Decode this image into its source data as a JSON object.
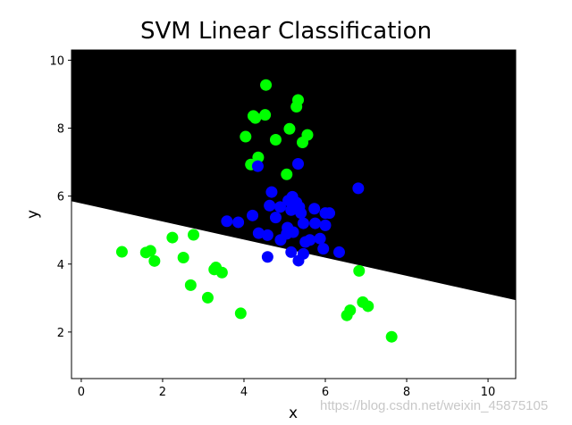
{
  "chart_data": {
    "type": "scatter",
    "title": "SVM Linear Classification",
    "xlabel": "x",
    "ylabel": "y",
    "xlim": [
      -0.24,
      10.68
    ],
    "ylim": [
      0.63,
      10.3
    ],
    "xticks": [
      0,
      2,
      4,
      6,
      8,
      10
    ],
    "yticks": [
      2,
      4,
      6,
      8,
      10
    ],
    "grid": false,
    "legend": null,
    "decision_regions": {
      "upper_color": "#000000",
      "lower_color": "#ffffff",
      "boundary": {
        "x": [
          -0.24,
          10.68
        ],
        "y": [
          5.85,
          2.94
        ]
      }
    },
    "series": [
      {
        "name": "class_green",
        "color": "#00ff00",
        "points": [
          [
            4.54,
            9.27
          ],
          [
            5.33,
            8.83
          ],
          [
            5.29,
            8.63
          ],
          [
            4.23,
            8.36
          ],
          [
            4.28,
            8.3
          ],
          [
            4.52,
            8.39
          ],
          [
            5.12,
            7.98
          ],
          [
            4.04,
            7.75
          ],
          [
            4.78,
            7.66
          ],
          [
            5.56,
            7.8
          ],
          [
            5.44,
            7.58
          ],
          [
            4.35,
            7.14
          ],
          [
            4.17,
            6.93
          ],
          [
            5.05,
            6.64
          ],
          [
            1.0,
            4.36
          ],
          [
            1.59,
            4.34
          ],
          [
            1.7,
            4.39
          ],
          [
            1.8,
            4.09
          ],
          [
            2.24,
            4.78
          ],
          [
            2.76,
            4.86
          ],
          [
            2.51,
            4.19
          ],
          [
            3.31,
            3.9
          ],
          [
            3.27,
            3.84
          ],
          [
            3.46,
            3.75
          ],
          [
            2.69,
            3.38
          ],
          [
            3.11,
            3.01
          ],
          [
            3.92,
            2.55
          ],
          [
            6.83,
            3.8
          ],
          [
            6.92,
            2.88
          ],
          [
            7.05,
            2.76
          ],
          [
            6.61,
            2.64
          ],
          [
            6.53,
            2.49
          ],
          [
            7.63,
            1.86
          ]
        ]
      },
      {
        "name": "class_blue",
        "color": "#0000ff",
        "points": [
          [
            4.34,
            6.88
          ],
          [
            5.33,
            6.95
          ],
          [
            6.81,
            6.23
          ],
          [
            4.68,
            6.12
          ],
          [
            5.19,
            5.98
          ],
          [
            5.09,
            5.87
          ],
          [
            4.63,
            5.72
          ],
          [
            4.89,
            5.68
          ],
          [
            5.29,
            5.81
          ],
          [
            5.36,
            5.68
          ],
          [
            5.16,
            5.59
          ],
          [
            5.4,
            5.5
          ],
          [
            5.73,
            5.63
          ],
          [
            6.0,
            5.5
          ],
          [
            6.1,
            5.5
          ],
          [
            4.21,
            5.43
          ],
          [
            4.78,
            5.37
          ],
          [
            3.58,
            5.26
          ],
          [
            3.86,
            5.23
          ],
          [
            5.46,
            5.2
          ],
          [
            5.75,
            5.2
          ],
          [
            6.0,
            5.14
          ],
          [
            5.07,
            5.07
          ],
          [
            5.21,
            4.94
          ],
          [
            4.36,
            4.91
          ],
          [
            4.58,
            4.85
          ],
          [
            5.05,
            4.89
          ],
          [
            4.9,
            4.71
          ],
          [
            5.51,
            4.65
          ],
          [
            5.62,
            4.71
          ],
          [
            5.87,
            4.75
          ],
          [
            5.95,
            4.45
          ],
          [
            6.34,
            4.35
          ],
          [
            5.16,
            4.35
          ],
          [
            5.46,
            4.3
          ],
          [
            4.58,
            4.21
          ],
          [
            5.34,
            4.1
          ]
        ]
      }
    ]
  },
  "watermark": "https://blog.csdn.net/weixin_45875105"
}
